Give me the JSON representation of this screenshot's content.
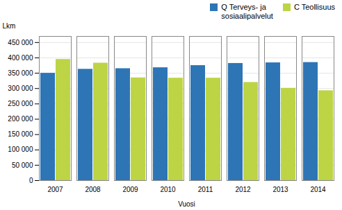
{
  "chart_data": {
    "type": "bar",
    "categories": [
      "2007",
      "2008",
      "2009",
      "2010",
      "2011",
      "2012",
      "2013",
      "2014"
    ],
    "series": [
      {
        "name": "Q Terveys- ja\nsosiaalipalvelut",
        "color": "#2e75b6",
        "values": [
          350000,
          363000,
          365000,
          368000,
          375000,
          382000,
          384000,
          385000
        ]
      },
      {
        "name": "C Teollisuus",
        "color": "#bdd444",
        "values": [
          395000,
          383000,
          335000,
          334000,
          334000,
          320000,
          301000,
          293000
        ]
      }
    ],
    "xlabel": "Vuosi",
    "ylabel": "Lkm",
    "ylim": [
      0,
      470000
    ],
    "yticks": [
      0,
      {
        "value": 50000,
        "label": "50 000"
      },
      {
        "value": 100000,
        "label": "100 000"
      },
      {
        "value": 150000,
        "label": "150 000"
      },
      {
        "value": 200000,
        "label": "200 000"
      },
      {
        "value": 250000,
        "label": "250 000"
      },
      {
        "value": 300000,
        "label": "300 000"
      },
      {
        "value": 350000,
        "label": "350 000"
      },
      {
        "value": 400000,
        "label": "400 000"
      },
      {
        "value": 450000,
        "label": "450 000"
      }
    ],
    "grid": true,
    "legend": "upper right"
  }
}
